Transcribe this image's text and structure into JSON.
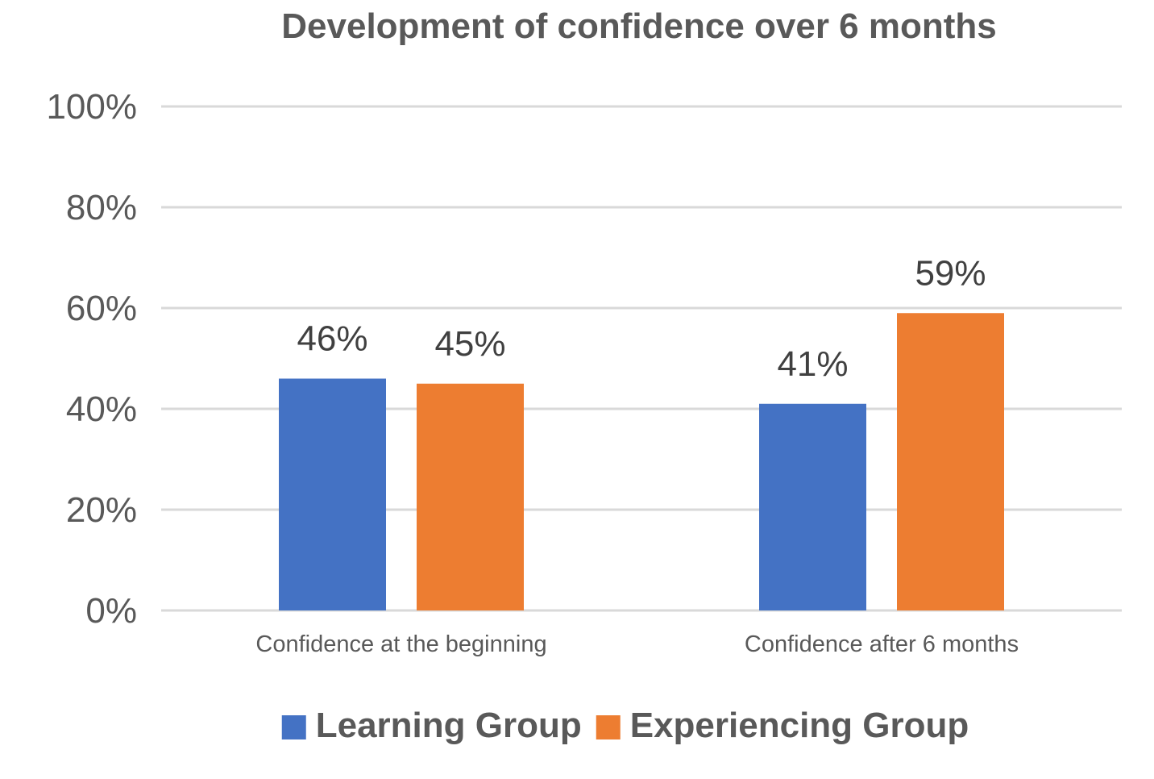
{
  "chart_data": {
    "type": "bar",
    "title": "Development of confidence over 6 months",
    "categories": [
      "Confidence at the beginning",
      "Confidence after 6 months"
    ],
    "series": [
      {
        "name": "Learning Group",
        "color": "#4472C4",
        "values": [
          46,
          41
        ],
        "labels": [
          "46%",
          "41%"
        ]
      },
      {
        "name": "Experiencing Group",
        "color": "#ED7D31",
        "values": [
          45,
          59
        ],
        "labels": [
          "45%",
          "59%"
        ]
      }
    ],
    "ylim": [
      0,
      100
    ],
    "yticks": [
      {
        "value": 0,
        "label": "0%"
      },
      {
        "value": 20,
        "label": "20%"
      },
      {
        "value": 40,
        "label": "40%"
      },
      {
        "value": 60,
        "label": "60%"
      },
      {
        "value": 80,
        "label": "80%"
      },
      {
        "value": 100,
        "label": "100%"
      }
    ],
    "xlabel": "",
    "ylabel": "",
    "grid": true,
    "legend_position": "bottom"
  }
}
